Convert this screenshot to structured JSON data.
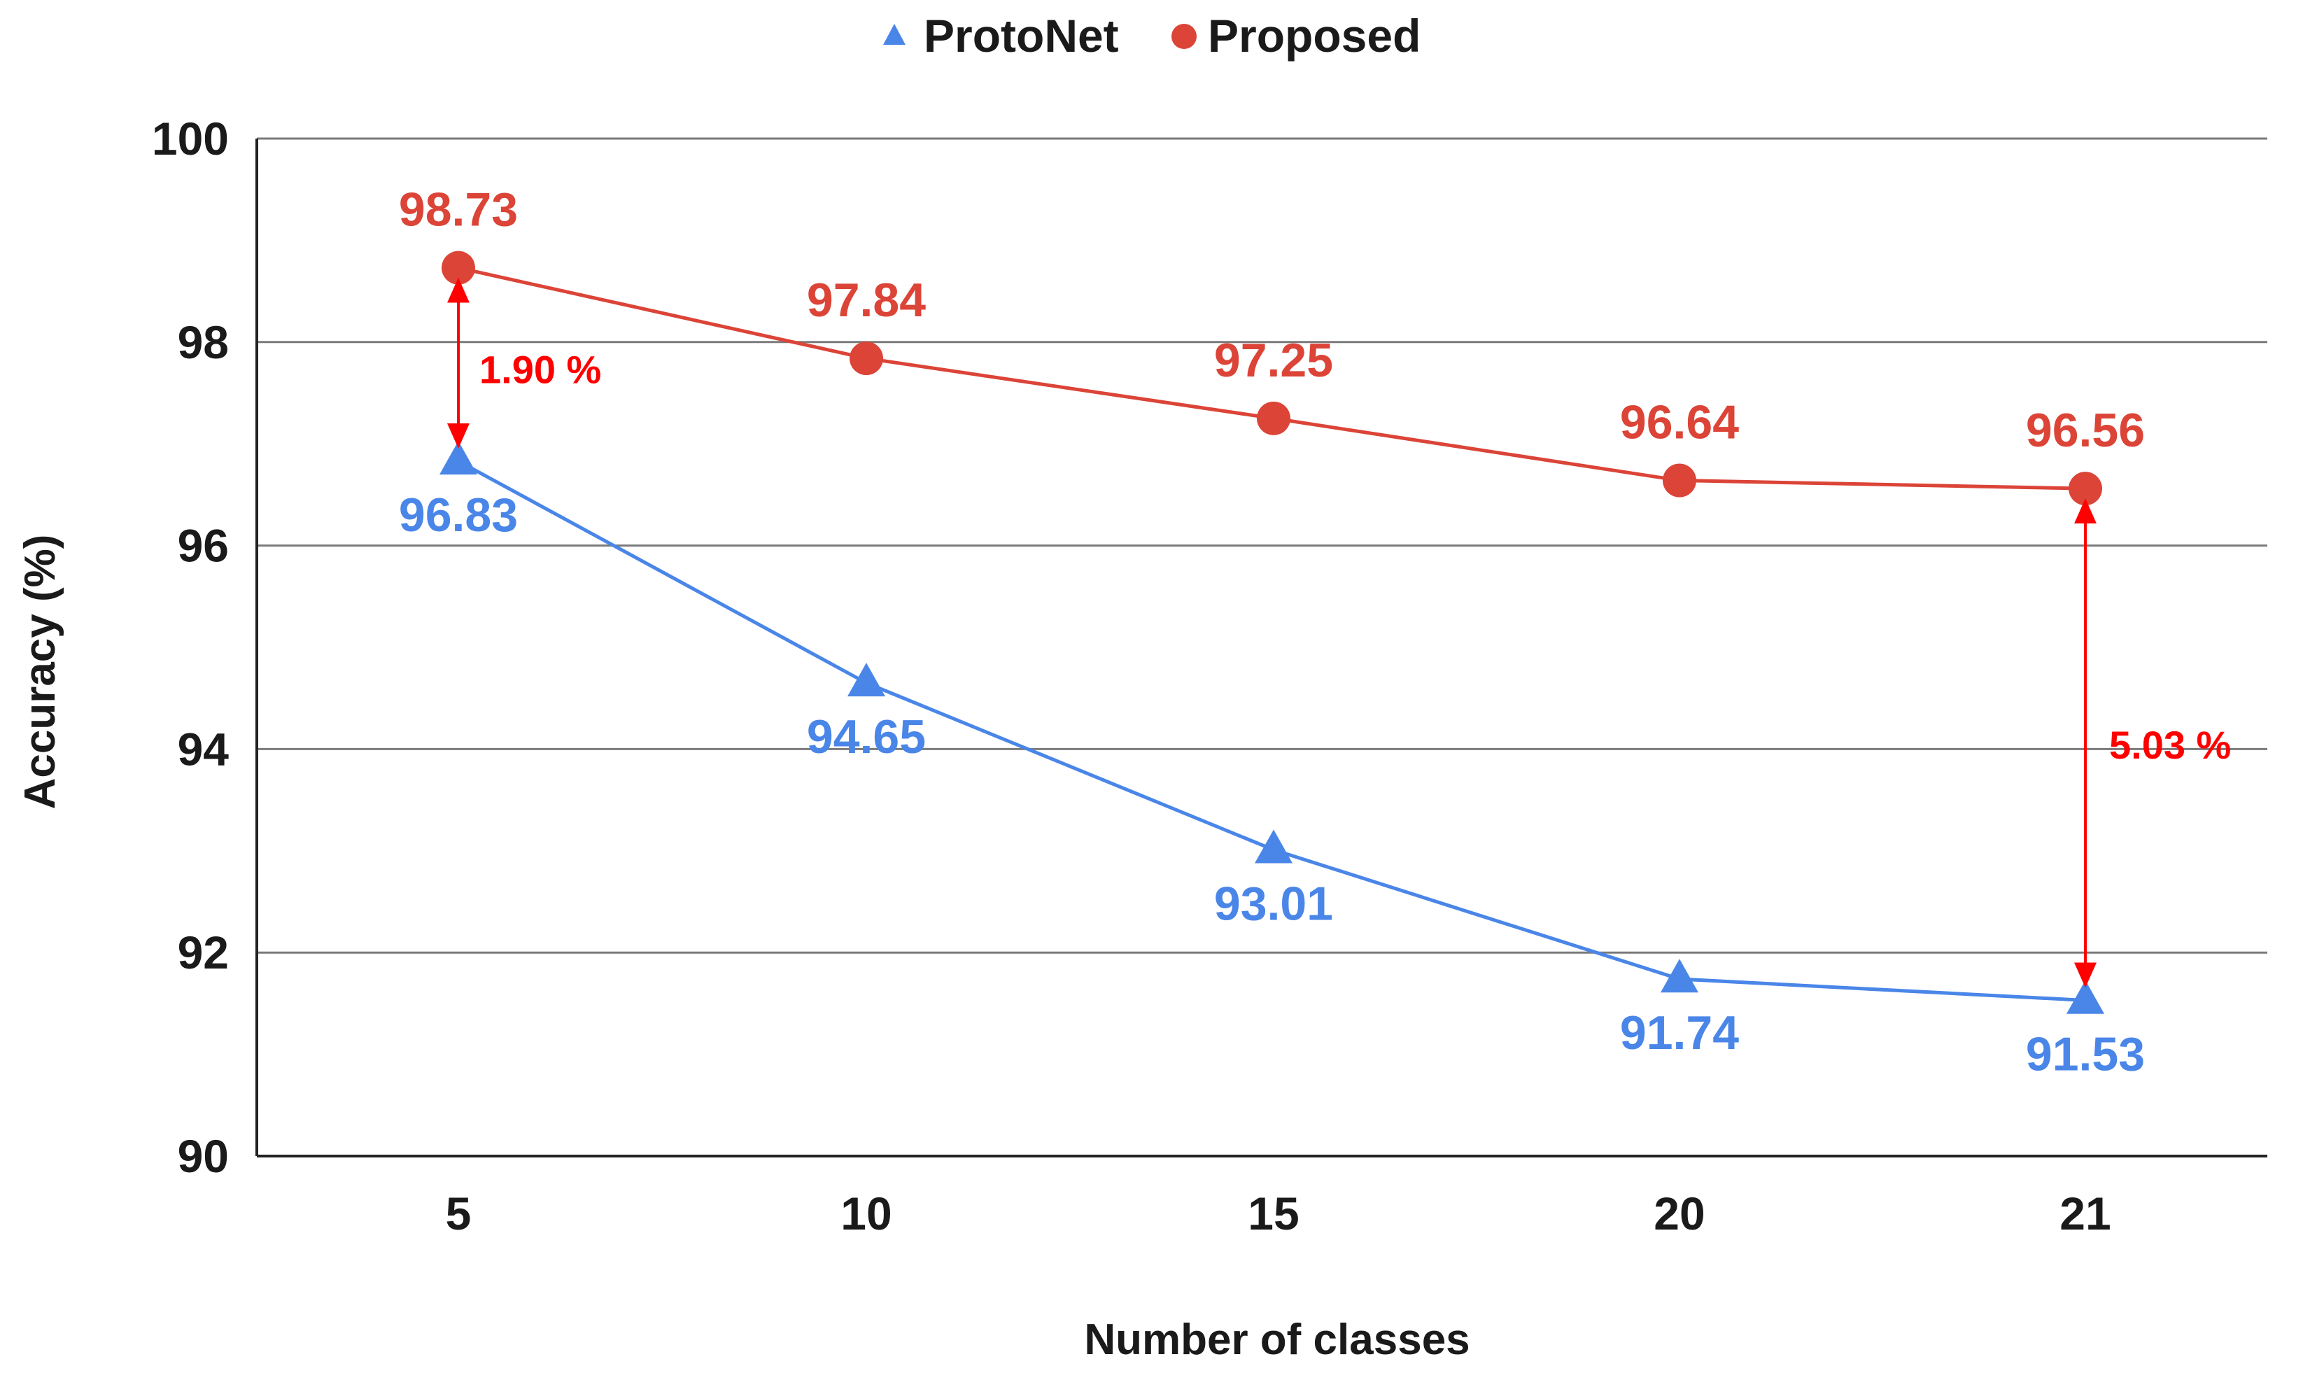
{
  "chart_data": {
    "type": "line",
    "title": "",
    "xlabel": "Number of classes",
    "ylabel": "Accuracy (%)",
    "categories": [
      "5",
      "10",
      "15",
      "20",
      "21"
    ],
    "ylim": [
      90,
      100
    ],
    "yticks": [
      "90",
      "92",
      "94",
      "96",
      "98",
      "100"
    ],
    "grid": true,
    "legend": "top-center",
    "series": [
      {
        "name": "ProtoNet",
        "marker": "triangle",
        "color": "#4a86e8",
        "values": [
          96.83,
          94.65,
          93.01,
          91.74,
          91.53
        ],
        "labels": [
          "96.83",
          "94.65",
          "93.01",
          "91.74",
          "91.53"
        ]
      },
      {
        "name": "Proposed",
        "marker": "circle",
        "color": "#db4437",
        "values": [
          98.73,
          97.84,
          97.25,
          96.64,
          96.56
        ],
        "labels": [
          "98.73",
          "97.84",
          "97.25",
          "96.64",
          "96.56"
        ]
      }
    ],
    "annotations": [
      {
        "category": "5",
        "from": 96.83,
        "to": 98.73,
        "text": "1.90 %",
        "color": "#ff0000"
      },
      {
        "category": "21",
        "from": 91.53,
        "to": 96.56,
        "text": "5.03 %",
        "color": "#ff0000"
      }
    ]
  }
}
